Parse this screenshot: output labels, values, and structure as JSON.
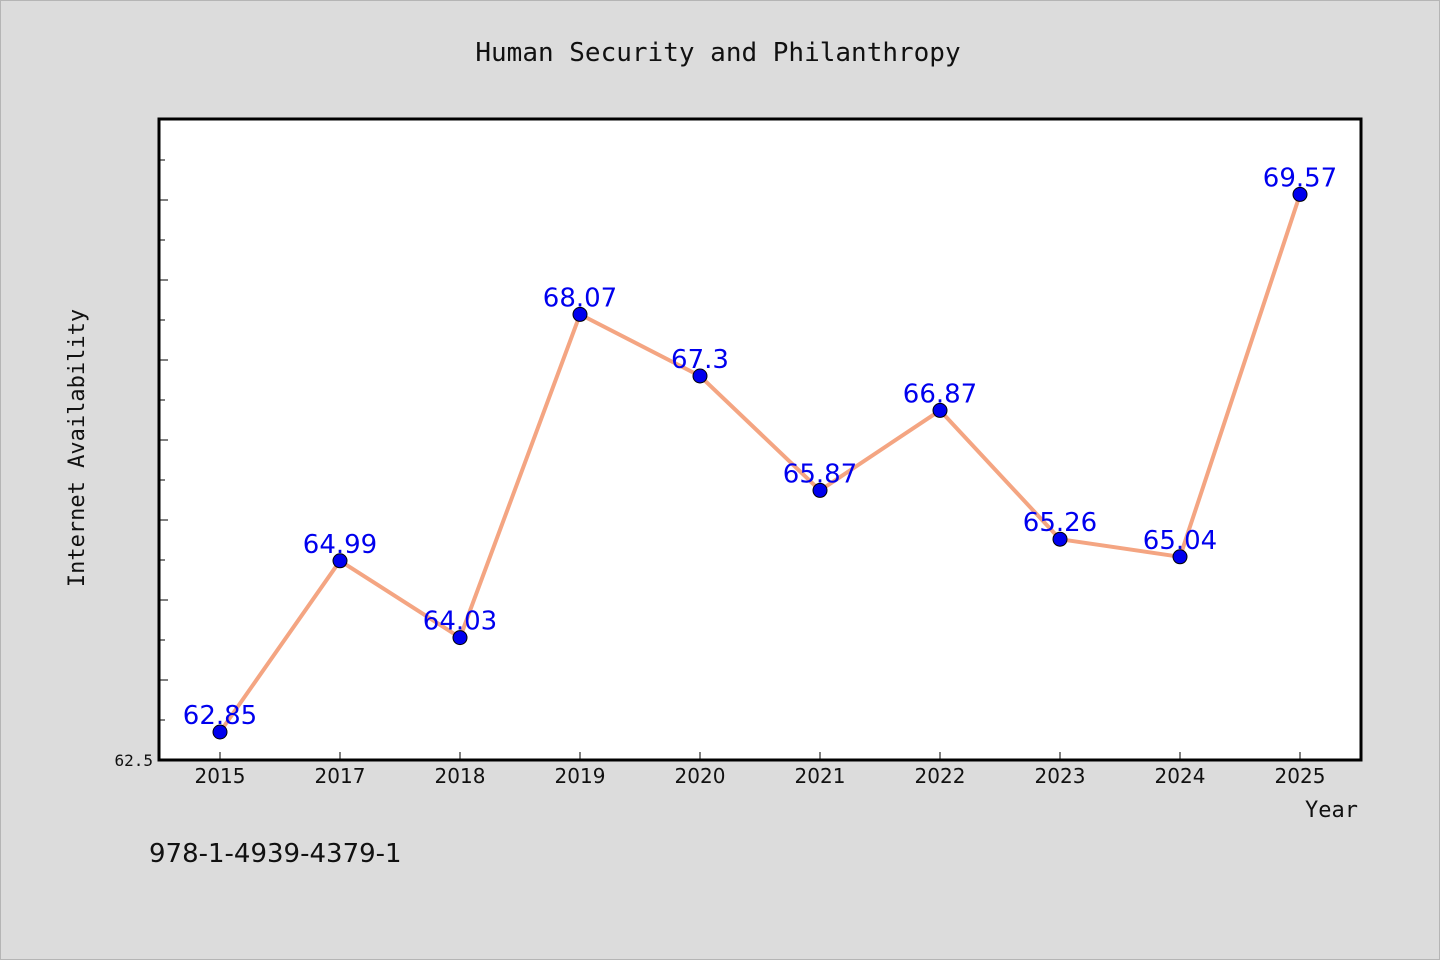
{
  "chart_data": {
    "type": "line",
    "title": "Human Security and Philanthropy",
    "xlabel": "Year",
    "ylabel": "Internet Availability",
    "categories": [
      "2015",
      "2017",
      "2018",
      "2019",
      "2020",
      "2021",
      "2022",
      "2023",
      "2024",
      "2025"
    ],
    "series": [
      {
        "values": [
          62.85,
          64.99,
          64.03,
          68.07,
          67.3,
          65.87,
          66.87,
          65.26,
          65.04,
          69.57
        ],
        "data_labels": [
          "62.85",
          "64.99",
          "64.03",
          "68.07",
          "67.3",
          "65.87",
          "66.87",
          "65.26",
          "65.04",
          "69.57"
        ]
      }
    ],
    "y_tick_labels": [
      "62.5"
    ],
    "ylim": [
      62.5,
      70.5
    ],
    "grid": false,
    "legend": "none",
    "colors": {
      "line": "#f4a582",
      "marker": "#0000ee",
      "data_label": "#0000ee",
      "page_background": "#dcdcdc",
      "plot_background": "#ffffff"
    }
  },
  "footer_text": "978-1-4939-4379-1"
}
